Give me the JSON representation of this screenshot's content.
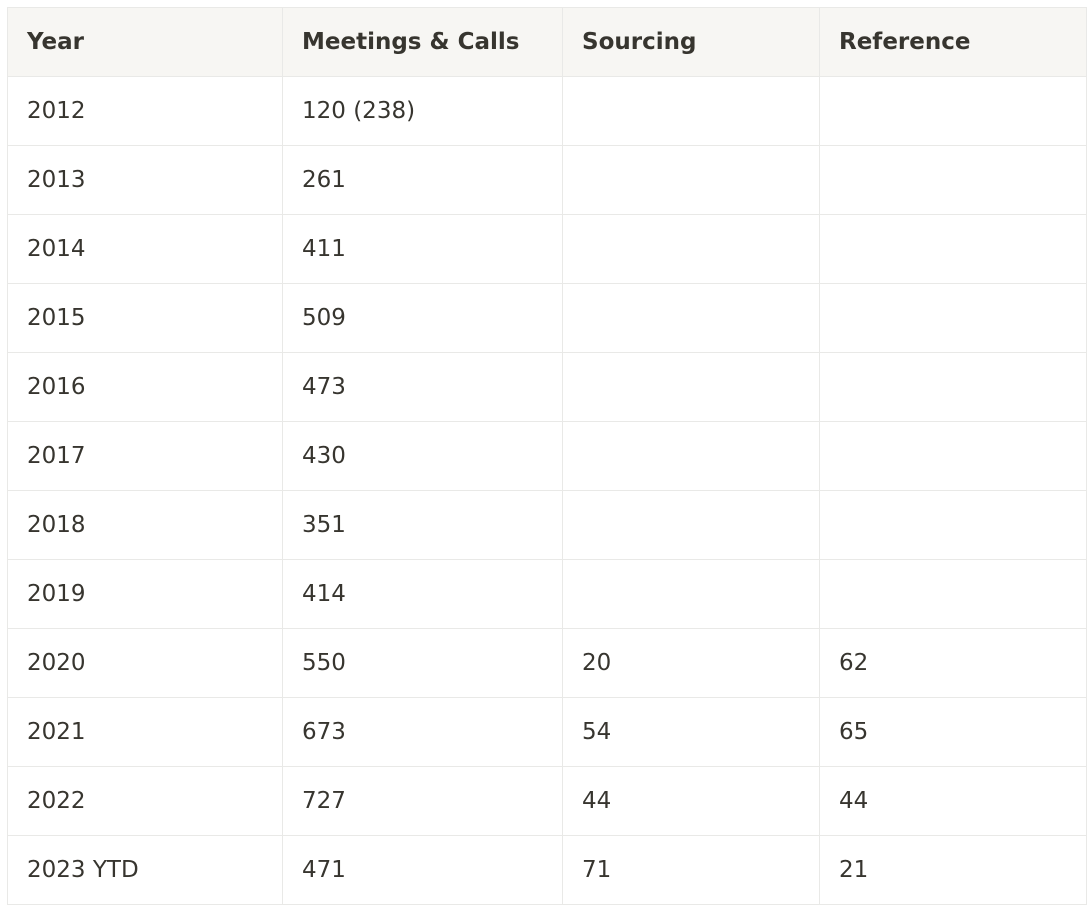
{
  "table": {
    "columns": [
      "Year",
      "Meetings & Calls",
      "Sourcing",
      "Reference"
    ],
    "rows": [
      [
        "2012",
        "120 (238)",
        "",
        ""
      ],
      [
        "2013",
        "261",
        "",
        ""
      ],
      [
        "2014",
        "411",
        "",
        ""
      ],
      [
        "2015",
        "509",
        "",
        ""
      ],
      [
        "2016",
        "473",
        "",
        ""
      ],
      [
        "2017",
        "430",
        "",
        ""
      ],
      [
        "2018",
        "351",
        "",
        ""
      ],
      [
        "2019",
        "414",
        "",
        ""
      ],
      [
        "2020",
        "550",
        "20",
        "62"
      ],
      [
        "2021",
        "673",
        "54",
        "65"
      ],
      [
        "2022",
        "727",
        "44",
        "44"
      ],
      [
        "2023 YTD",
        "471",
        "71",
        "21"
      ]
    ]
  }
}
